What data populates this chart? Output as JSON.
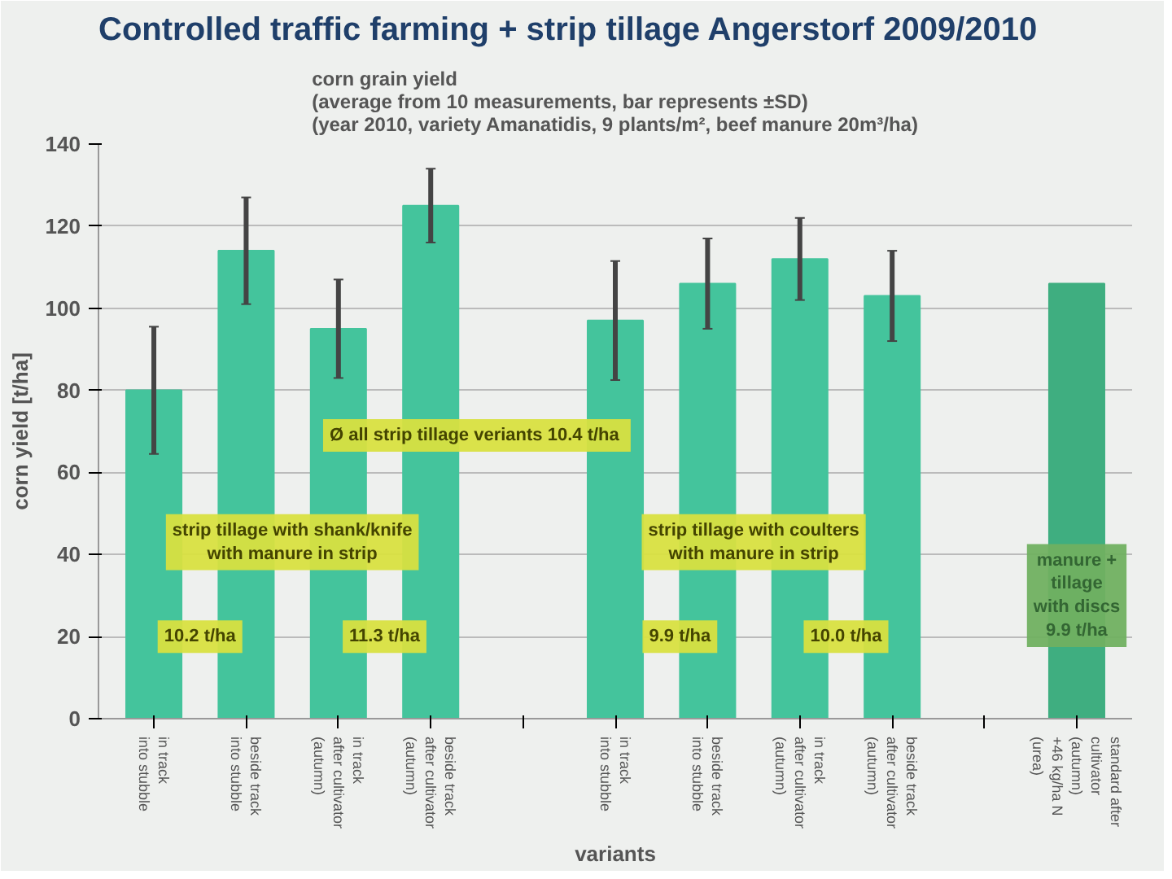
{
  "chart_data": {
    "type": "bar",
    "title": "Controlled traffic farming + strip tillage Angerstorf 2009/2010",
    "subtitle": "corn grain yield\n(average from 10 measurements, bar represents ±SD)\n(year 2010, variety Amanatidis, 9 plants/m², beef manure 20m³/ha)",
    "xlabel": "variants",
    "ylabel": "corn yield [t/ha]",
    "categories": [
      "in track\ninto stubble",
      "beside track\ninto stubble",
      "in track\nafter cultivator\n(autumn)",
      "beside track\nafter cultivator\n(autumn)",
      null,
      "in track\ninto stubble",
      "beside track\ninto stubble",
      "in track\nafter cultivator\n(autumn)",
      "beside track\nafter cultivator\n(autumn)",
      null,
      "standard after\ncultivator\n(autumn)\n+46 kg/ha N\n(urea)"
    ],
    "values": [
      80,
      114,
      95,
      125,
      null,
      97,
      106,
      112,
      103,
      null,
      106
    ],
    "errors": [
      15.5,
      13,
      12,
      9,
      null,
      14.5,
      11,
      10,
      11,
      null,
      null
    ],
    "colors": [
      "#44c49c",
      "#44c49c",
      "#44c49c",
      "#44c49c",
      "#44c49c",
      "#44c49c",
      "#44c49c",
      "#44c49c",
      "#44c49c",
      "#44c49c",
      "#3fae80"
    ],
    "ylim": [
      0,
      140
    ],
    "yticks": [
      0,
      20,
      40,
      60,
      80,
      100,
      120,
      140
    ],
    "grid": "y",
    "annotations": [
      "Ø  all strip tillage veriants 10.4 t/ha",
      "strip tillage with shank/knife\nwith manure in strip",
      "10.2 t/ha",
      "11.3 t/ha",
      "strip tillage with coulters\nwith manure in strip",
      "9.9 t/ha",
      "10.0 t/ha",
      "manure +\ntillage\nwith discs\n9.9 t/ha"
    ]
  }
}
